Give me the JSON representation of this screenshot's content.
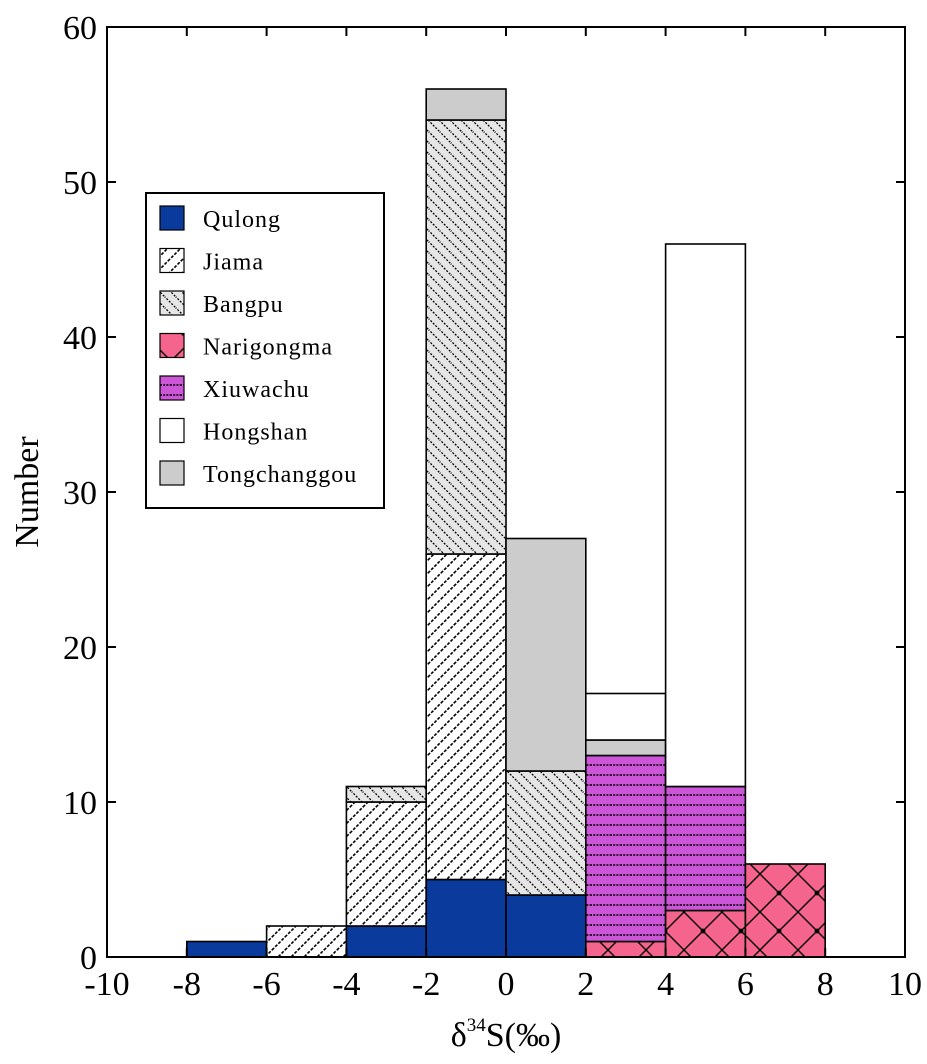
{
  "chart_data": {
    "type": "bar",
    "stacked": true,
    "xlabel_parts": {
      "delta": "δ",
      "sup": "34",
      "rest": "S(‰)"
    },
    "ylabel": "Number",
    "xlim": [
      -10,
      10
    ],
    "ylim": [
      0,
      60
    ],
    "xticks": [
      -10,
      -8,
      -6,
      -4,
      -2,
      0,
      2,
      4,
      6,
      8,
      10
    ],
    "yticks": [
      0,
      10,
      20,
      30,
      40,
      50,
      60
    ],
    "grid": false,
    "legend_position": "upper-left",
    "bins": [
      [
        -8,
        -6
      ],
      [
        -6,
        -4
      ],
      [
        -4,
        -2
      ],
      [
        -2,
        0
      ],
      [
        0,
        2
      ],
      [
        2,
        4
      ],
      [
        4,
        6
      ],
      [
        6,
        8
      ]
    ],
    "series": [
      {
        "name": "Qulong",
        "pattern": "solid-blue",
        "color": "#0a3a9c",
        "values": [
          1,
          0,
          2,
          5,
          4,
          0,
          0,
          0
        ]
      },
      {
        "name": "Jiama",
        "pattern": "diagonal-up",
        "color": "#000000",
        "values": [
          0,
          2,
          8,
          21,
          0,
          0,
          0,
          0
        ]
      },
      {
        "name": "Bangpu",
        "pattern": "diagonal-down-grey",
        "color": "#e6e6e6",
        "values": [
          0,
          0,
          1,
          28,
          8,
          0,
          0,
          0
        ]
      },
      {
        "name": "Narigongma",
        "pattern": "crosshatch-pink",
        "color": "#f5648c",
        "values": [
          0,
          0,
          0,
          0,
          0,
          1,
          3,
          6
        ]
      },
      {
        "name": "Xiuwachu",
        "pattern": "horizontal-purple",
        "color": "#cc55d8",
        "values": [
          0,
          0,
          0,
          0,
          0,
          12,
          8,
          0
        ]
      },
      {
        "name": "Hongshan",
        "pattern": "white",
        "color": "#ffffff",
        "values": [
          0,
          0,
          0,
          0,
          0,
          3,
          35,
          0
        ]
      },
      {
        "name": "Tongchanggou",
        "pattern": "solid-grey",
        "color": "#cccccc",
        "values": [
          0,
          0,
          0,
          2,
          15,
          1,
          0,
          0
        ]
      }
    ],
    "stack_order": [
      [
        "Qulong"
      ],
      [
        "Jiama"
      ],
      [
        "Qulong",
        "Jiama",
        "Bangpu"
      ],
      [
        "Qulong",
        "Jiama",
        "Bangpu",
        "Tongchanggou"
      ],
      [
        "Qulong",
        "Bangpu",
        "Tongchanggou"
      ],
      [
        "Narigongma",
        "Xiuwachu",
        "Tongchanggou",
        "Hongshan"
      ],
      [
        "Narigongma",
        "Xiuwachu",
        "Hongshan"
      ],
      [
        "Narigongma"
      ]
    ]
  }
}
